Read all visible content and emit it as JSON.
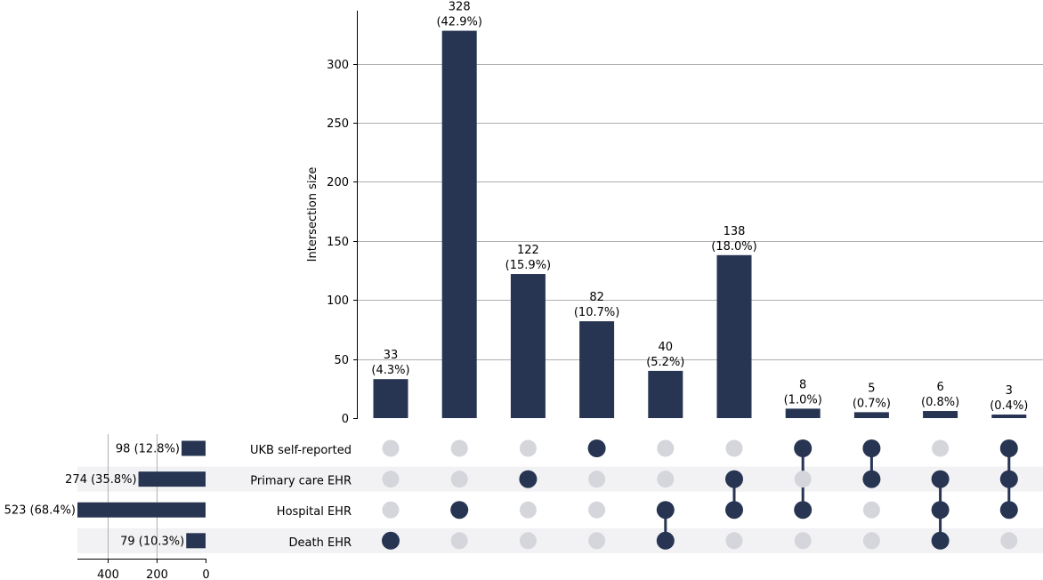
{
  "colors": {
    "bar": "#273552",
    "dot_active": "#273552",
    "dot_inactive": "#d4d6db",
    "row_stripe": "#f2f2f4",
    "grid": "#b0b0b0"
  },
  "chart_data": {
    "type": "upset",
    "ylabel": "Intersection size",
    "ylim": [
      0,
      345
    ],
    "yticks": [
      "0",
      "50",
      "100",
      "150",
      "200",
      "250",
      "300"
    ],
    "sets": [
      "UKB self-reported",
      "Primary care EHR",
      "Hospital EHR",
      "Death EHR"
    ],
    "set_sizes": [
      98,
      274,
      523,
      79
    ],
    "set_size_labels": [
      "98 (12.8%)",
      "274 (35.8%)",
      "523 (68.4%)",
      "79 (10.3%)"
    ],
    "set_size_ticks": [
      "400",
      "200",
      "0"
    ],
    "set_size_xlim": [
      523,
      0
    ],
    "intersections": [
      {
        "size": 33,
        "label_count": "33",
        "label_pct": "(4.3%)",
        "members": [
          false,
          false,
          false,
          true
        ]
      },
      {
        "size": 328,
        "label_count": "328",
        "label_pct": "(42.9%)",
        "members": [
          false,
          false,
          true,
          false
        ]
      },
      {
        "size": 122,
        "label_count": "122",
        "label_pct": "(15.9%)",
        "members": [
          false,
          true,
          false,
          false
        ]
      },
      {
        "size": 82,
        "label_count": "82",
        "label_pct": "(10.7%)",
        "members": [
          true,
          false,
          false,
          false
        ]
      },
      {
        "size": 40,
        "label_count": "40",
        "label_pct": "(5.2%)",
        "members": [
          false,
          false,
          true,
          true
        ]
      },
      {
        "size": 138,
        "label_count": "138",
        "label_pct": "(18.0%)",
        "members": [
          false,
          true,
          true,
          false
        ]
      },
      {
        "size": 8,
        "label_count": "8",
        "label_pct": "(1.0%)",
        "members": [
          true,
          false,
          true,
          false
        ]
      },
      {
        "size": 5,
        "label_count": "5",
        "label_pct": "(0.7%)",
        "members": [
          true,
          true,
          false,
          false
        ]
      },
      {
        "size": 6,
        "label_count": "6",
        "label_pct": "(0.8%)",
        "members": [
          false,
          true,
          true,
          true
        ]
      },
      {
        "size": 3,
        "label_count": "3",
        "label_pct": "(0.4%)",
        "members": [
          true,
          true,
          true,
          false
        ]
      }
    ]
  }
}
